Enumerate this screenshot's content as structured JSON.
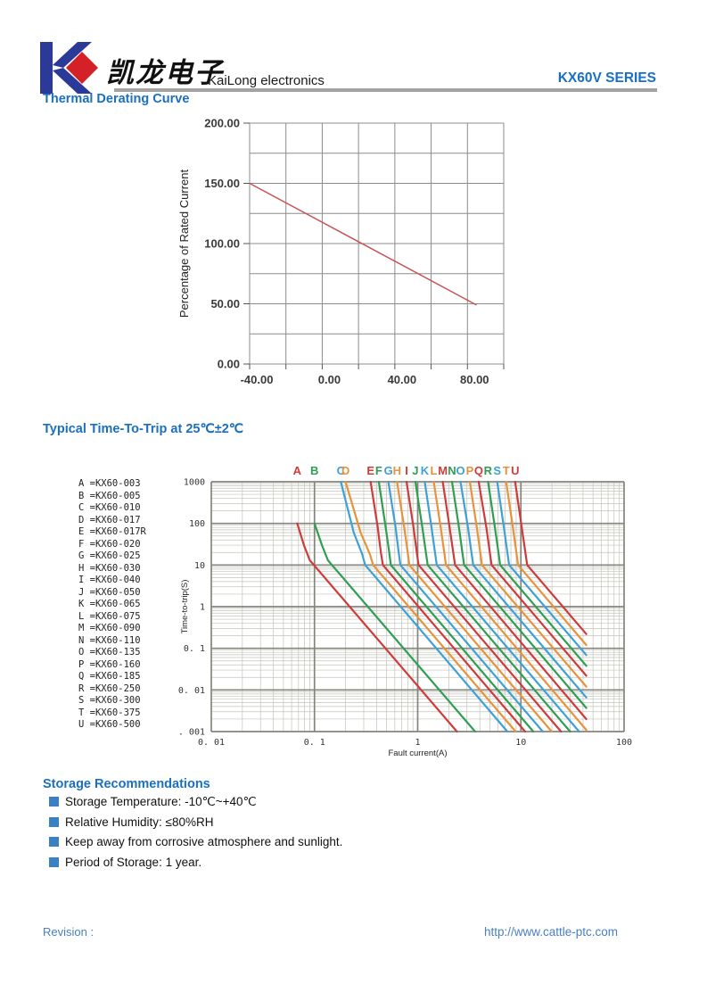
{
  "header": {
    "logo_cn": "凯龙电子",
    "company": "KaiLong electronics",
    "series": "KX60V SERIES"
  },
  "sections": {
    "derating_title": "Thermal Derating Curve",
    "trip_title": "Typical Time-To-Trip at 25℃±2℃",
    "storage_title": "Storage Recommendations"
  },
  "storage_items": [
    "Storage Temperature: -10℃~+40℃",
    "Relative Humidity: ≤80%RH",
    "Keep away from corrosive atmosphere and sunlight.",
    "Period of Storage: 1 year."
  ],
  "footer": {
    "revision": "Revision :",
    "url": "http://www.cattle-ptc.com"
  },
  "palette": {
    "heading_blue": "#1a70c0",
    "footer_blue": "#4a7fc0",
    "rule_gray": "#a3a3a3",
    "bullet_blue": "#3b7fc4",
    "logo_blue": "#2b3a98",
    "logo_red": "#d42127",
    "grid1_gray": "#8c8c8c",
    "grid2_major": "#85857d",
    "grid2_minor": "#c3c3ba",
    "tick_text": "#3a3a3a"
  },
  "chart_data": [
    {
      "type": "line",
      "title": "Thermal Derating Curve",
      "xlabel": "",
      "ylabel": "Percentage of Rated Current",
      "xlim": [
        -40,
        100
      ],
      "ylim": [
        0,
        200
      ],
      "x_grid_step": 20,
      "y_grid_step": 25,
      "grid": true,
      "x_ticks": [
        {
          "v": -40,
          "label": "-40.00"
        },
        {
          "v": 0,
          "label": "0.00"
        },
        {
          "v": 40,
          "label": "40.00"
        },
        {
          "v": 80,
          "label": "80.00"
        }
      ],
      "y_ticks": [
        {
          "v": 200,
          "label": "200.00"
        },
        {
          "v": 150,
          "label": "150.00"
        },
        {
          "v": 100,
          "label": "100.00"
        },
        {
          "v": 50,
          "label": "50.00"
        },
        {
          "v": 0,
          "label": "0.00"
        }
      ],
      "series": [
        {
          "name": "thermal-derating",
          "color": "#c65353",
          "points": [
            [
              -40,
              150
            ],
            [
              85,
              49
            ]
          ]
        }
      ]
    },
    {
      "type": "line",
      "title": "Typical Time-To-Trip at 25℃±2℃",
      "xlabel": "Fault current(A)",
      "ylabel": "Time-to-trip(S)",
      "xscale": "log",
      "yscale": "log",
      "xlim": [
        0.01,
        100
      ],
      "ylim": [
        0.001,
        1000
      ],
      "grid": true,
      "x_ticks": [
        {
          "v": 0.01,
          "label": "0. 01"
        },
        {
          "v": 0.1,
          "label": "0. 1"
        },
        {
          "v": 1,
          "label": "1"
        },
        {
          "v": 10,
          "label": "10"
        },
        {
          "v": 100,
          "label": "100"
        }
      ],
      "y_ticks": [
        {
          "v": 1000,
          "label": "1000"
        },
        {
          "v": 100,
          "label": "100"
        },
        {
          "v": 10,
          "label": "10"
        },
        {
          "v": 1,
          "label": "1"
        },
        {
          "v": 0.1,
          "label": "0. 1"
        },
        {
          "v": 0.01,
          "label": "0. 01"
        },
        {
          "v": 0.001,
          "label": "0. 001"
        }
      ],
      "series": [
        {
          "letter": "A",
          "part": "KX60-003",
          "color": "#cf3b3b",
          "points": [
            [
              0.068,
              100
            ],
            [
              0.079,
              30
            ],
            [
              0.09,
              13
            ],
            [
              2.4,
              0.001
            ]
          ]
        },
        {
          "letter": "B",
          "part": "KX60-005",
          "color": "#2f9e53",
          "points": [
            [
              0.1,
              100
            ],
            [
              0.118,
              30
            ],
            [
              0.135,
              13
            ],
            [
              3.6,
              0.001
            ]
          ]
        },
        {
          "letter": "C",
          "part": "KX60-010",
          "color": "#3ea1d5",
          "points": [
            [
              0.18,
              1000
            ],
            [
              0.24,
              60
            ],
            [
              0.29,
              18
            ],
            [
              0.31,
              10
            ],
            [
              7.4,
              0.001
            ]
          ]
        },
        {
          "letter": "D",
          "part": "KX60-017",
          "color": "#e6933c",
          "points": [
            [
              0.2,
              1000
            ],
            [
              0.28,
              60
            ],
            [
              0.345,
              18
            ],
            [
              0.37,
              10
            ],
            [
              8.9,
              0.001
            ]
          ]
        },
        {
          "letter": "E",
          "part": "KX60-017R",
          "color": "#cf3b3b",
          "points": [
            [
              0.35,
              1000
            ],
            [
              0.41,
              80
            ],
            [
              0.44,
              20
            ],
            [
              0.46,
              10
            ],
            [
              11,
              0.001
            ]
          ]
        },
        {
          "letter": "F",
          "part": "KX60-020",
          "color": "#2f9e53",
          "points": [
            [
              0.42,
              1000
            ],
            [
              0.49,
              80
            ],
            [
              0.53,
              20
            ],
            [
              0.55,
              10
            ],
            [
              13.2,
              0.001
            ]
          ]
        },
        {
          "letter": "G",
          "part": "KX60-025",
          "color": "#3ea1d5",
          "points": [
            [
              0.52,
              1000
            ],
            [
              0.61,
              80
            ],
            [
              0.655,
              20
            ],
            [
              0.68,
              10
            ],
            [
              16.3,
              0.001
            ]
          ]
        },
        {
          "letter": "H",
          "part": "KX60-030",
          "color": "#e6933c",
          "points": [
            [
              0.63,
              1000
            ],
            [
              0.74,
              80
            ],
            [
              0.8,
              20
            ],
            [
              0.83,
              10
            ],
            [
              19.9,
              0.001
            ]
          ]
        },
        {
          "letter": "I",
          "part": "KX60-040",
          "color": "#cf3b3b",
          "points": [
            [
              0.78,
              1000
            ],
            [
              0.91,
              80
            ],
            [
              0.98,
              20
            ],
            [
              1.02,
              10
            ],
            [
              24.5,
              0.001
            ]
          ]
        },
        {
          "letter": "J",
          "part": "KX60-050",
          "color": "#2f9e53",
          "points": [
            [
              0.95,
              1000
            ],
            [
              1.11,
              80
            ],
            [
              1.2,
              20
            ],
            [
              1.25,
              10
            ],
            [
              30,
              0.001
            ]
          ]
        },
        {
          "letter": "K",
          "part": "KX60-065",
          "color": "#3ea1d5",
          "points": [
            [
              1.17,
              1000
            ],
            [
              1.36,
              80
            ],
            [
              1.47,
              20
            ],
            [
              1.53,
              10
            ],
            [
              36.7,
              0.001
            ]
          ]
        },
        {
          "letter": "L",
          "part": "KX60-075",
          "color": "#e6933c",
          "points": [
            [
              1.43,
              1000
            ],
            [
              1.67,
              80
            ],
            [
              1.81,
              20
            ],
            [
              1.88,
              10
            ],
            [
              43,
              0.0011
            ]
          ]
        },
        {
          "letter": "M",
          "part": "KX60-090",
          "color": "#cf3b3b",
          "points": [
            [
              1.75,
              1000
            ],
            [
              2.04,
              80
            ],
            [
              2.21,
              20
            ],
            [
              2.3,
              10
            ],
            [
              43,
              0.002
            ]
          ]
        },
        {
          "letter": "N",
          "part": "KX60-110",
          "color": "#2f9e53",
          "points": [
            [
              2.15,
              1000
            ],
            [
              2.51,
              80
            ],
            [
              2.71,
              20
            ],
            [
              2.82,
              10
            ],
            [
              43,
              0.0037
            ]
          ]
        },
        {
          "letter": "O",
          "part": "KX60-135",
          "color": "#3ea1d5",
          "points": [
            [
              2.6,
              1000
            ],
            [
              3.07,
              80
            ],
            [
              3.32,
              20
            ],
            [
              3.45,
              10
            ],
            [
              43,
              0.0066
            ]
          ]
        },
        {
          "letter": "P",
          "part": "KX60-160",
          "color": "#e6933c",
          "points": [
            [
              3.2,
              1000
            ],
            [
              3.74,
              80
            ],
            [
              4.04,
              20
            ],
            [
              4.2,
              10
            ],
            [
              43,
              0.012
            ]
          ]
        },
        {
          "letter": "Q",
          "part": "KX60-185",
          "color": "#cf3b3b",
          "points": [
            [
              3.9,
              1000
            ],
            [
              4.63,
              80
            ],
            [
              5.0,
              20
            ],
            [
              5.2,
              10
            ],
            [
              43,
              0.022
            ]
          ]
        },
        {
          "letter": "R",
          "part": "KX60-250",
          "color": "#2f9e53",
          "points": [
            [
              4.8,
              1000
            ],
            [
              5.6,
              80
            ],
            [
              6.06,
              20
            ],
            [
              6.3,
              10
            ],
            [
              43,
              0.038
            ]
          ]
        },
        {
          "letter": "S",
          "part": "KX60-300",
          "color": "#3ea1d5",
          "points": [
            [
              5.9,
              1000
            ],
            [
              6.85,
              80
            ],
            [
              7.4,
              20
            ],
            [
              7.7,
              10
            ],
            [
              43,
              0.069
            ]
          ]
        },
        {
          "letter": "T",
          "part": "KX60-375",
          "color": "#e6933c",
          "points": [
            [
              7.2,
              1000
            ],
            [
              8.37,
              80
            ],
            [
              9.04,
              20
            ],
            [
              9.4,
              10
            ],
            [
              43,
              0.12
            ]
          ]
        },
        {
          "letter": "U",
          "part": "KX60-500",
          "color": "#cf3b3b",
          "points": [
            [
              8.8,
              1000
            ],
            [
              10.2,
              80
            ],
            [
              11.05,
              20
            ],
            [
              11.5,
              10
            ],
            [
              43,
              0.22
            ]
          ]
        }
      ]
    }
  ]
}
